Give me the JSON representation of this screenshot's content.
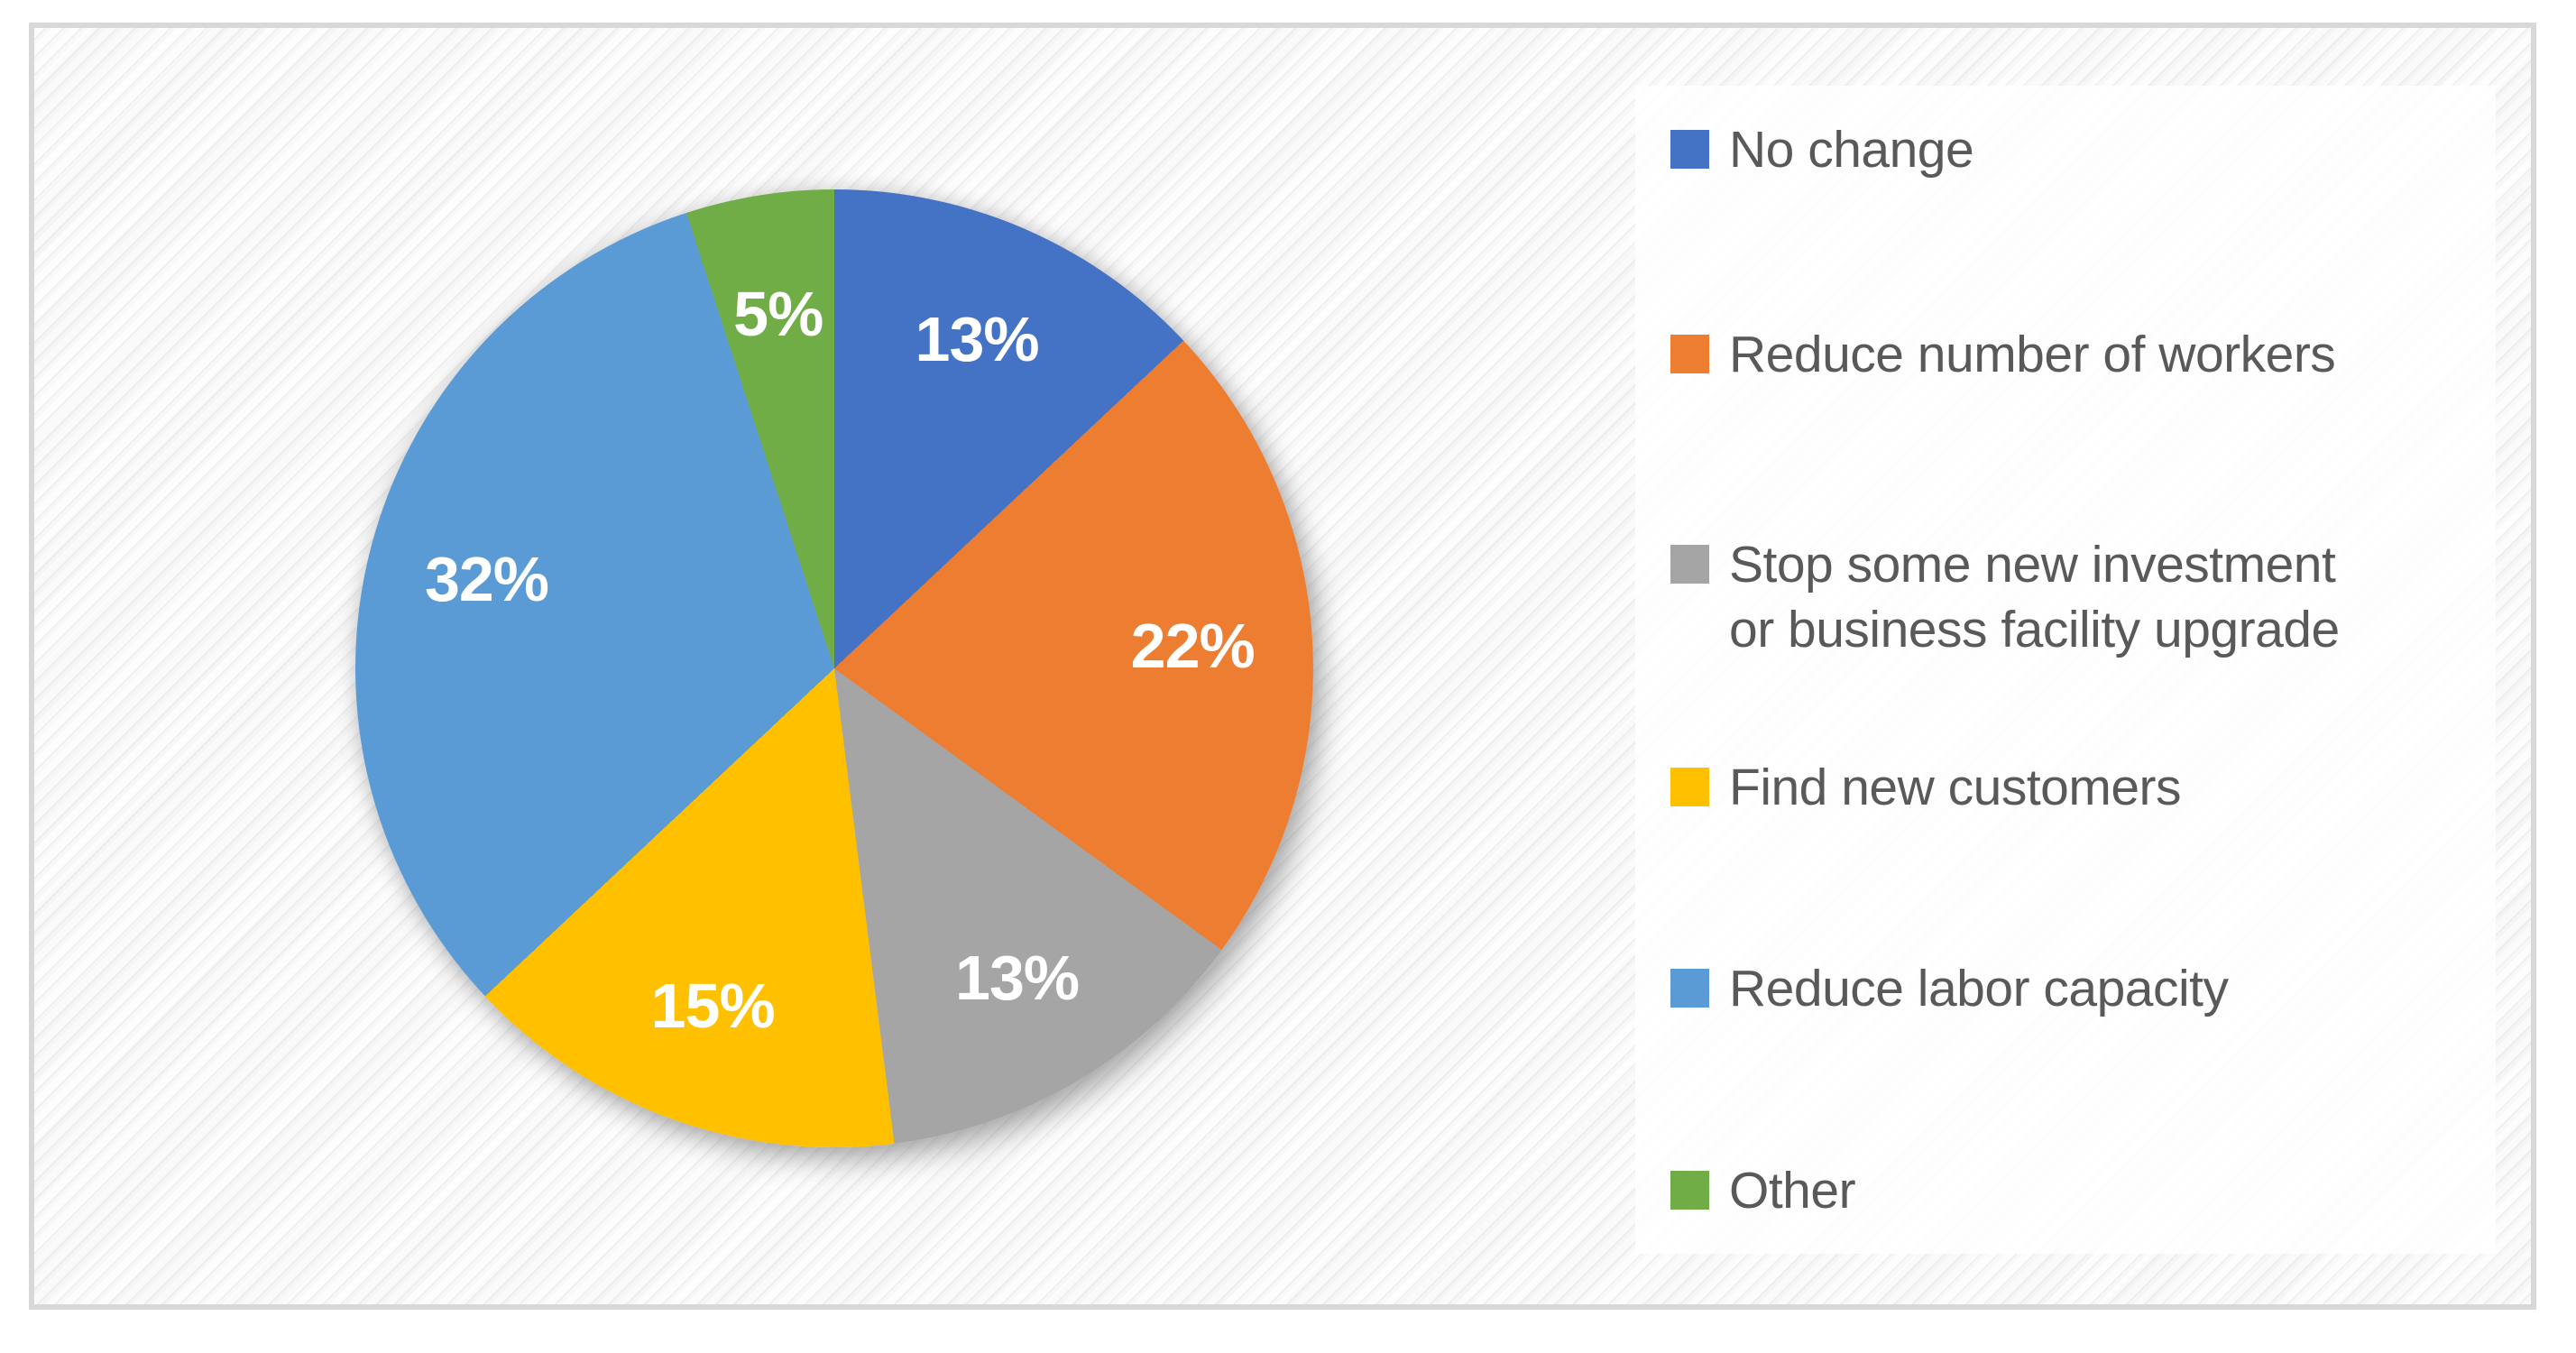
{
  "chart_data": {
    "type": "pie",
    "title": "",
    "data_labels": "percent",
    "legend_position": "right",
    "start_angle_deg": 0,
    "direction": "clockwise",
    "categories": [
      "No change",
      "Reduce number of workers",
      "Stop some new investment or business facility upgrade",
      "Find new customers",
      "Reduce labor capacity",
      "Other"
    ],
    "values": [
      13,
      22,
      13,
      15,
      32,
      5
    ],
    "slices": [
      {
        "label": "No change",
        "label_lines": [
          "No change"
        ],
        "value": 13,
        "pct_label": "13%",
        "color": "#4472C4"
      },
      {
        "label": "Reduce number of workers",
        "label_lines": [
          "Reduce number of workers"
        ],
        "value": 22,
        "pct_label": "22%",
        "color": "#ED7D31"
      },
      {
        "label": "Stop some new investment or business facility upgrade",
        "label_lines": [
          "Stop some new investment",
          "or business facility upgrade"
        ],
        "value": 13,
        "pct_label": "13%",
        "color": "#A5A5A5"
      },
      {
        "label": "Find new customers",
        "label_lines": [
          "Find new customers"
        ],
        "value": 15,
        "pct_label": "15%",
        "color": "#FFC000"
      },
      {
        "label": "Reduce labor capacity",
        "label_lines": [
          "Reduce labor capacity"
        ],
        "value": 32,
        "pct_label": "32%",
        "color": "#5B9BD5"
      },
      {
        "label": "Other",
        "label_lines": [
          "Other"
        ],
        "value": 5,
        "pct_label": "5%",
        "color": "#70AD47"
      }
    ],
    "style": {
      "label_text_color": "#ffffff",
      "legend_text_color": "#595959",
      "frame_border_color": "#d8d8d8",
      "legend_panel_color": "rgba(255,255,255,0.82)"
    }
  }
}
